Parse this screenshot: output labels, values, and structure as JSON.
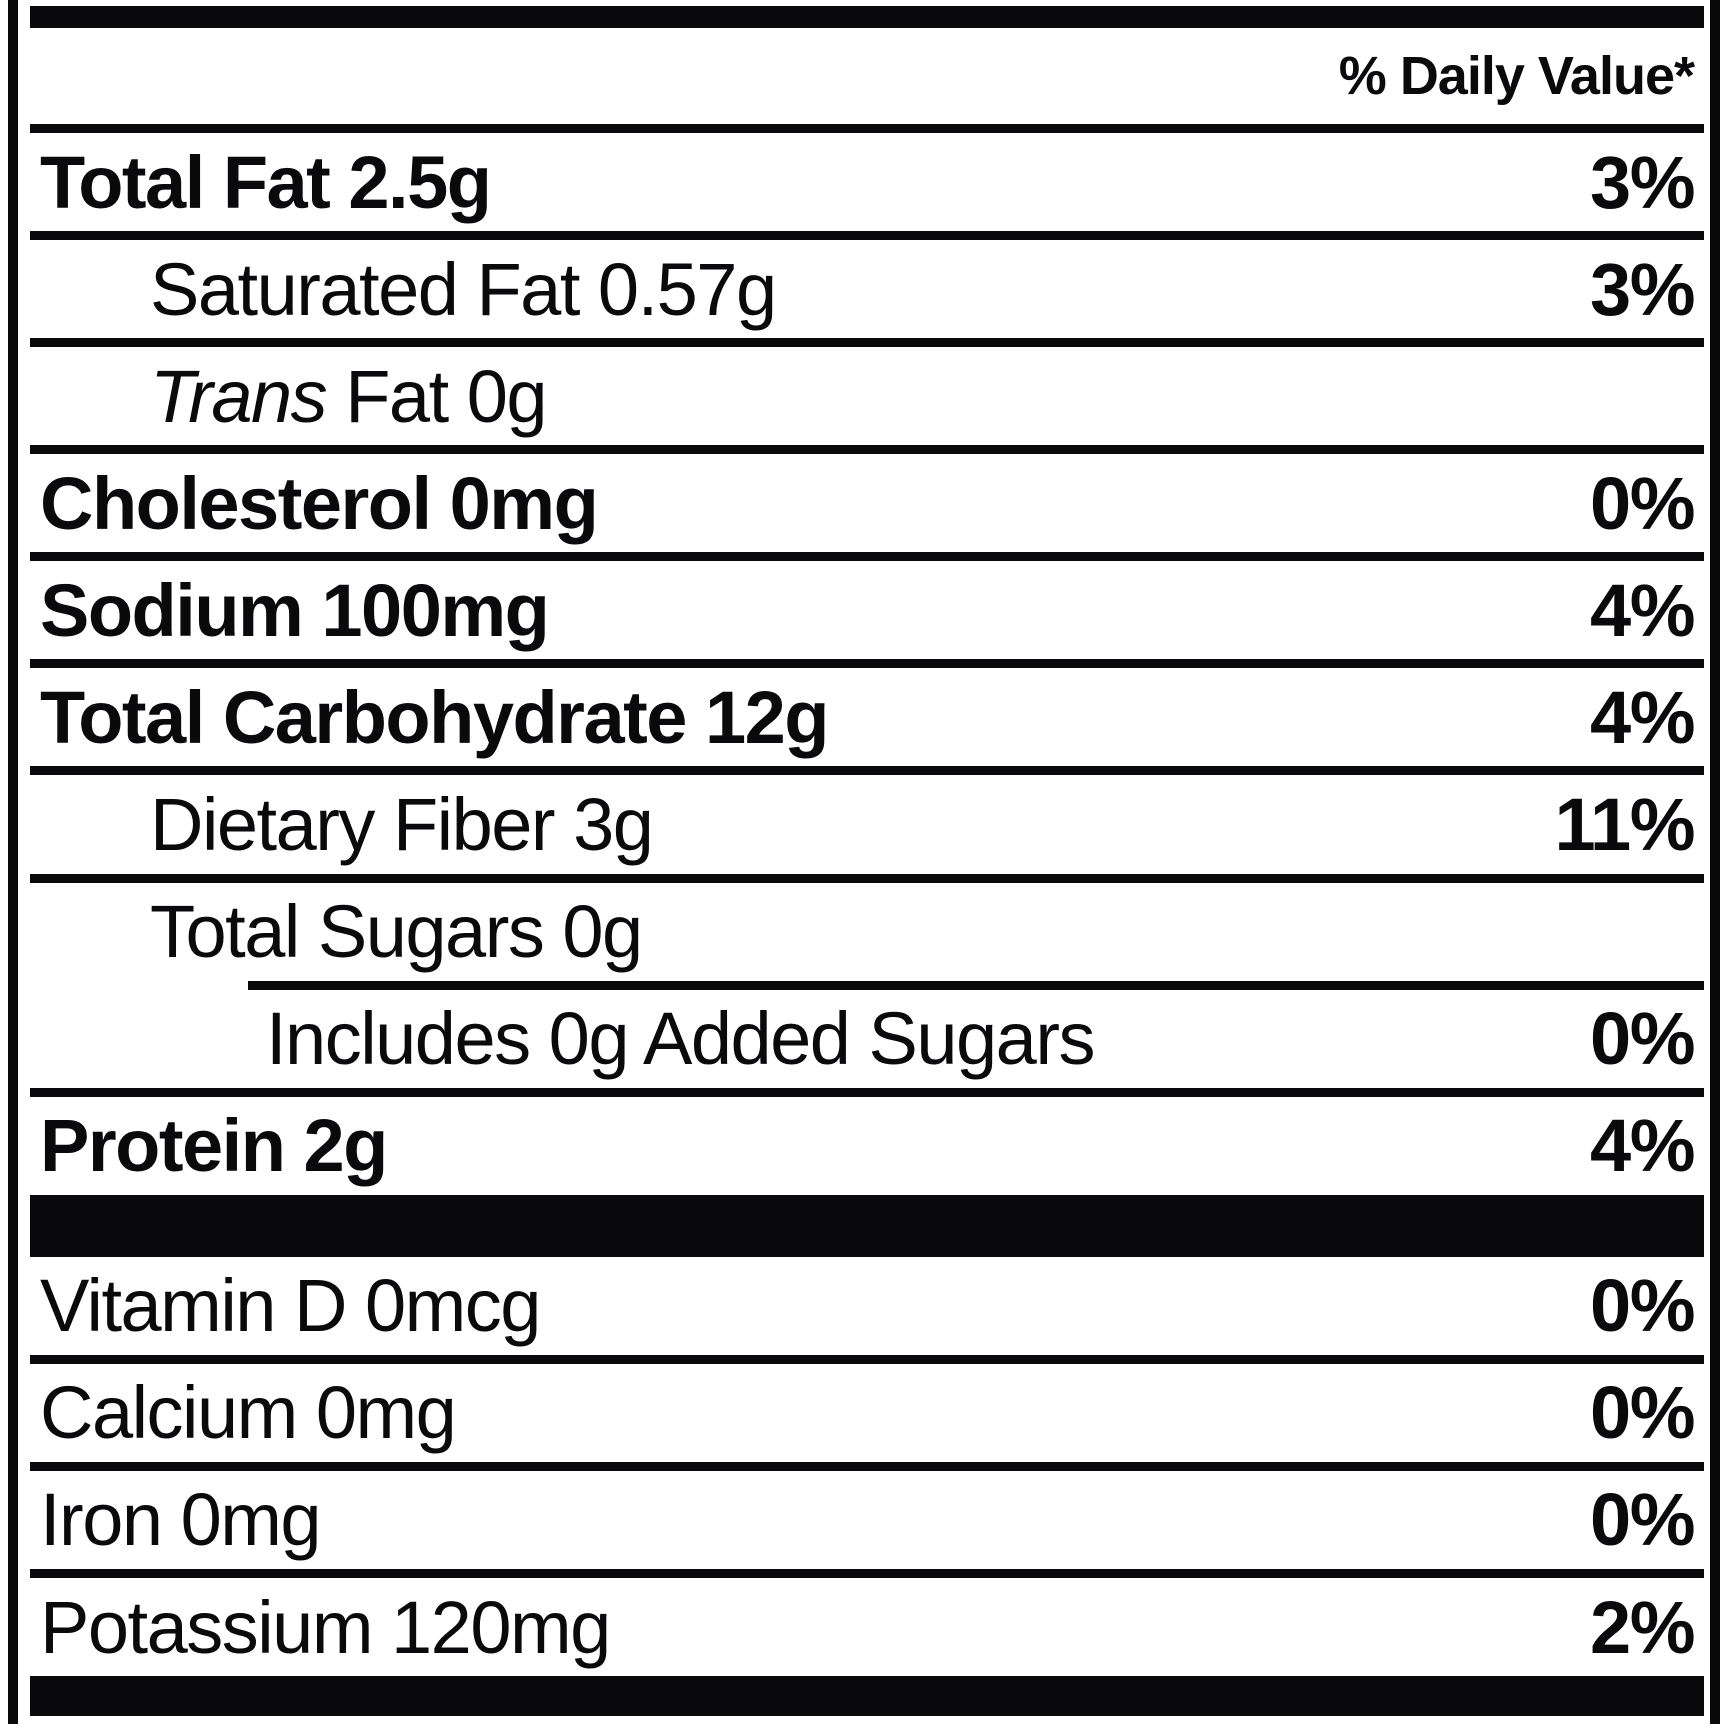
{
  "label": {
    "dv_header": "% Daily Value*",
    "rows": [
      {
        "label": "Total Fat 2.5g",
        "dv": "3%"
      },
      {
        "label": "Saturated Fat 0.57g",
        "dv": "3%"
      },
      {
        "label_prefix": "Trans",
        "label_rest": " Fat 0g"
      },
      {
        "label": "Cholesterol 0mg",
        "dv": "0%"
      },
      {
        "label": "Sodium 100mg",
        "dv": "4%"
      },
      {
        "label": "Total Carbohydrate 12g",
        "dv": "4%"
      },
      {
        "label": "Dietary Fiber 3g",
        "dv": "11%"
      },
      {
        "label": "Total Sugars 0g"
      },
      {
        "label": "Includes 0g Added Sugars",
        "dv": "0%"
      },
      {
        "label": "Protein 2g",
        "dv": "4%"
      },
      {
        "label": "Vitamin D 0mcg",
        "dv": "0%"
      },
      {
        "label": "Calcium 0mg",
        "dv": "0%"
      },
      {
        "label": "Iron 0mg",
        "dv": "0%"
      },
      {
        "label": "Potassium 120mg",
        "dv": "2%"
      }
    ],
    "colors": {
      "ink": "#0a0a0c",
      "paper": "#ffffff"
    }
  }
}
